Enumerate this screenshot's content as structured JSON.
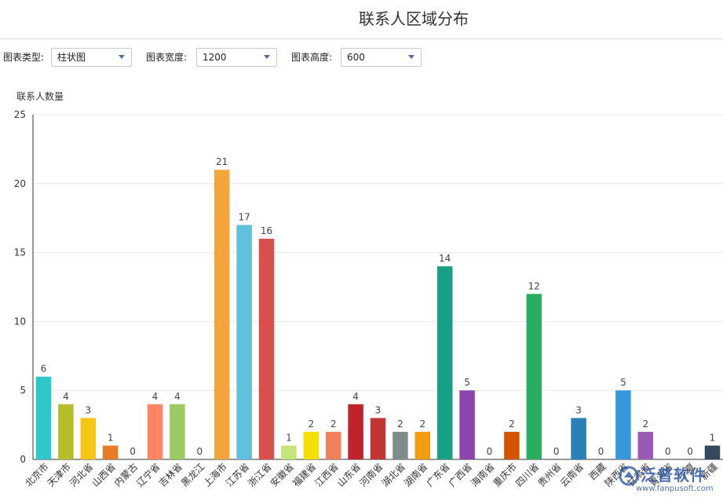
{
  "page": {
    "title": "联系人区域分布"
  },
  "controls": {
    "chart_type_label": "图表类型:",
    "chart_type_value": "柱状图",
    "width_label": "图表宽度:",
    "width_value": "1200",
    "height_label": "图表高度:",
    "height_value": "600"
  },
  "watermark": {
    "brand": "泛普软件",
    "url": "www.fanpusoft.com"
  },
  "chart_data": {
    "type": "bar",
    "ylabel": "联系人数量",
    "xlabel": "",
    "ylim": [
      0,
      25
    ],
    "yticks": [
      0,
      5,
      10,
      15,
      20,
      25
    ],
    "grid": true,
    "legend": "none",
    "categories": [
      "北京市",
      "天津市",
      "河北省",
      "山西省",
      "内蒙古",
      "辽宁省",
      "吉林省",
      "黑龙江",
      "上海市",
      "江苏省",
      "浙江省",
      "安徽省",
      "福建省",
      "江西省",
      "山东省",
      "河南省",
      "湖北省",
      "湖南省",
      "广东省",
      "广西省",
      "海南省",
      "重庆市",
      "四川省",
      "贵州省",
      "云南省",
      "西藏",
      "陕西省",
      "甘肃省",
      "青海省",
      "宁夏",
      "新疆"
    ],
    "values": [
      6,
      4,
      3,
      1,
      0,
      4,
      4,
      0,
      21,
      17,
      16,
      1,
      2,
      2,
      4,
      3,
      2,
      2,
      14,
      5,
      0,
      2,
      12,
      0,
      3,
      0,
      5,
      2,
      0,
      0,
      1
    ],
    "colors": [
      "#2ec7c9",
      "#b6bd2b",
      "#f5c518",
      "#e87c25",
      "#27727b",
      "#ff8463",
      "#9bca63",
      "#fad860",
      "#f3a43b",
      "#60c0dd",
      "#d7504b",
      "#c6e579",
      "#f4e001",
      "#f0805a",
      "#c1232b",
      "#c23531",
      "#7f8c8d",
      "#f39c12",
      "#16a085",
      "#8e44ad",
      "#2c3e50",
      "#d35400",
      "#27ae60",
      "#c0392b",
      "#2980b9",
      "#7f8c8d",
      "#3498db",
      "#9b59b6",
      "#1abc9c",
      "#e67e22",
      "#34495e"
    ]
  }
}
